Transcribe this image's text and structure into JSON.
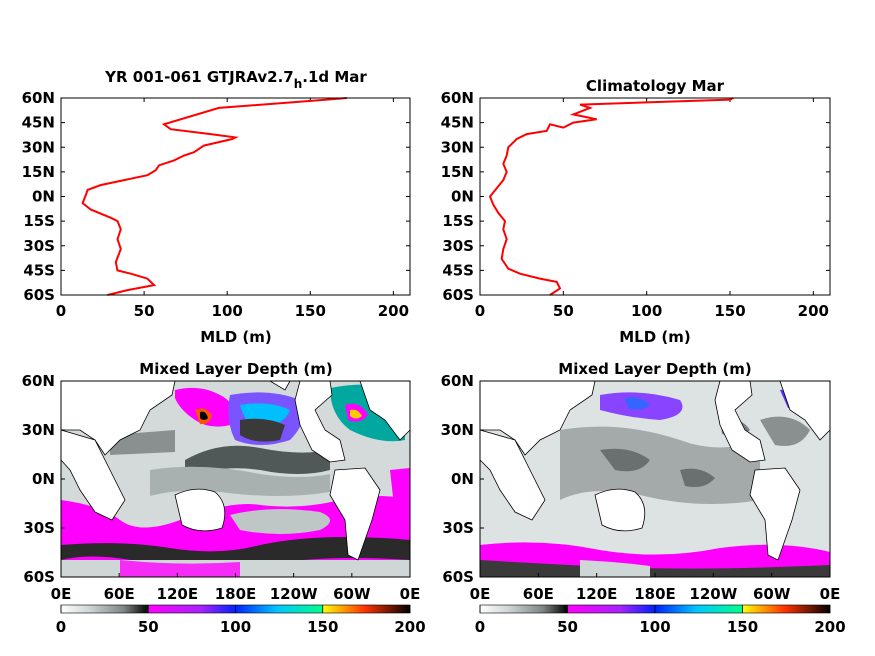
{
  "chart_data": [
    {
      "type": "line",
      "title": "YR 001-061 GTJRAv2.7",
      "title_subscript": "h",
      "title_suffix": ".1d Mar",
      "xlabel": "MLD (m)",
      "ylabel": "",
      "xlim": [
        0,
        210
      ],
      "ylim": [
        -60,
        60
      ],
      "xticks": [
        "0",
        "50",
        "100",
        "150",
        "200"
      ],
      "yticks": [
        "60S",
        "45S",
        "30S",
        "15S",
        "0N",
        "15N",
        "30N",
        "45N",
        "60N"
      ],
      "series": [
        {
          "color": "#ff0000",
          "x": [
            28,
            40,
            56,
            52,
            42,
            34,
            33,
            36,
            34,
            36,
            34,
            30,
            18,
            13,
            15,
            16,
            24,
            38,
            52,
            57,
            59,
            68,
            74,
            80,
            86,
            103,
            105,
            90,
            66,
            62,
            95,
            160,
            172
          ],
          "y": [
            -60,
            -57,
            -54,
            -50,
            -47,
            -45,
            -40,
            -32,
            -26,
            -20,
            -15,
            -13,
            -8,
            -4,
            1,
            4,
            7,
            10,
            13,
            16,
            19,
            22,
            25,
            27,
            31,
            35,
            36,
            38,
            41,
            44,
            54,
            59,
            60
          ]
        }
      ]
    },
    {
      "type": "line",
      "title": "Climatology Mar",
      "xlabel": "MLD (m)",
      "ylabel": "",
      "xlim": [
        0,
        210
      ],
      "ylim": [
        -60,
        60
      ],
      "xticks": [
        "0",
        "50",
        "100",
        "150",
        "200"
      ],
      "yticks": [
        "60S",
        "45S",
        "30S",
        "15S",
        "0N",
        "15N",
        "30N",
        "45N",
        "60N"
      ],
      "series": [
        {
          "color": "#ff0000",
          "x": [
            42,
            48,
            46,
            36,
            24,
            17,
            13,
            14,
            16,
            14,
            15,
            11,
            8,
            6,
            10,
            14,
            16,
            14,
            16,
            17,
            22,
            28,
            40,
            42,
            50,
            56,
            70,
            56,
            66,
            60,
            150,
            152
          ],
          "y": [
            -60,
            -56,
            -52,
            -50,
            -47,
            -44,
            -38,
            -32,
            -26,
            -20,
            -15,
            -10,
            -5,
            0,
            5,
            10,
            15,
            20,
            25,
            30,
            35,
            38,
            40,
            44,
            42,
            45,
            47,
            50,
            54,
            56,
            59,
            60
          ]
        }
      ]
    },
    {
      "type": "heatmap",
      "title": "Mixed Layer Depth (m)",
      "xticks": [
        "0E",
        "60E",
        "120E",
        "180E",
        "120W",
        "60W",
        "0E"
      ],
      "yticks": [
        "60S",
        "30S",
        "0N",
        "30N",
        "60N"
      ],
      "colorbar": {
        "ticks": [
          "0",
          "50",
          "100",
          "150",
          "200"
        ],
        "range": [
          0,
          200
        ],
        "colors": [
          "#ffffff",
          "#000000",
          "#ff00ff",
          "#0033ff",
          "#00ffff",
          "#ffff00",
          "#ff0000",
          "#000000"
        ]
      }
    },
    {
      "type": "heatmap",
      "title": "Mixed Layer Depth (m)",
      "xticks": [
        "0E",
        "60E",
        "120E",
        "180E",
        "120W",
        "60W",
        "0E"
      ],
      "yticks": [
        "60S",
        "30S",
        "0N",
        "30N",
        "60N"
      ],
      "colorbar": {
        "ticks": [
          "0",
          "50",
          "100",
          "150",
          "200"
        ],
        "range": [
          0,
          200
        ],
        "colors": [
          "#ffffff",
          "#000000",
          "#ff00ff",
          "#0033ff",
          "#00ffff",
          "#ffff00",
          "#ff0000",
          "#000000"
        ]
      }
    }
  ]
}
